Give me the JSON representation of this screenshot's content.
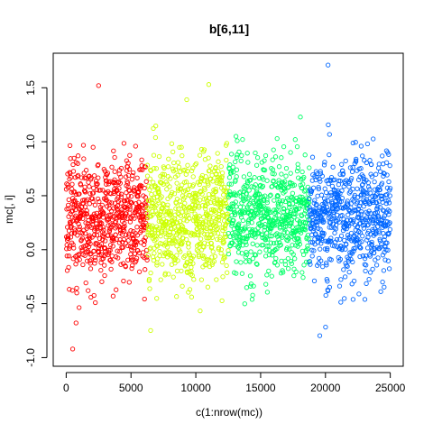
{
  "chart_data": {
    "type": "scatter",
    "title": "b[6,11]",
    "xlabel": "c(1:nrow(mc))",
    "ylabel": "mc[, i]",
    "xlim": [
      -1000,
      26000
    ],
    "ylim": [
      -1.08,
      1.82
    ],
    "x_ticks": [
      0,
      5000,
      10000,
      15000,
      20000,
      25000
    ],
    "x_tick_labels": [
      "0",
      "5000",
      "10000",
      "15000",
      "20000",
      "25000"
    ],
    "y_ticks": [
      -1.0,
      -0.5,
      0.0,
      0.5,
      1.0,
      1.5
    ],
    "y_tick_labels": [
      "-1.0",
      "-0.5",
      "0.0",
      "0.5",
      "1.0",
      "1.5"
    ],
    "grid": false,
    "marker": "open-circle",
    "n_points": 25000,
    "series": [
      {
        "x_range": [
          1,
          6250
        ],
        "color": "#FF0000",
        "center": 0.3,
        "spread": 0.28
      },
      {
        "x_range": [
          6251,
          12500
        ],
        "color": "#CCFF00",
        "center": 0.3,
        "spread": 0.28
      },
      {
        "x_range": [
          12501,
          18750
        ],
        "color": "#00FF66",
        "center": 0.3,
        "spread": 0.28
      },
      {
        "x_range": [
          18751,
          25000
        ],
        "color": "#0066FF",
        "center": 0.3,
        "spread": 0.28
      }
    ],
    "notable_points": [
      {
        "x": 500,
        "y": -0.92
      },
      {
        "x": 20200,
        "y": 1.71
      },
      {
        "x": 11000,
        "y": 1.53
      },
      {
        "x": 2500,
        "y": 1.52
      }
    ]
  }
}
